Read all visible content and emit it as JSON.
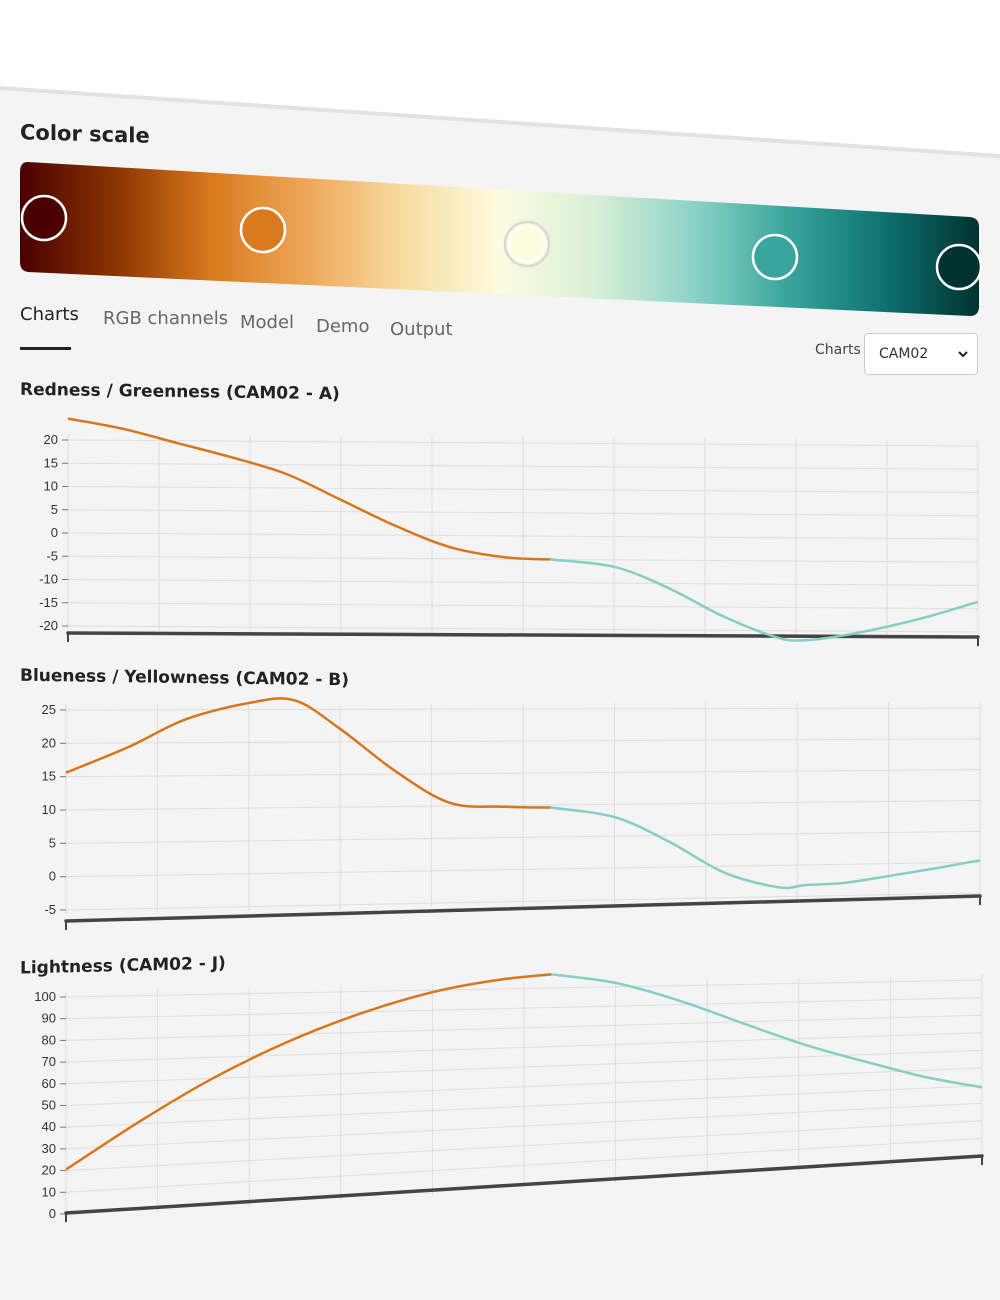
{
  "color_scale": {
    "title": "Color scale",
    "stops": [
      "#4a0000",
      "#d97a1e",
      "#fdfbe0",
      "#3aa59c",
      "#003230"
    ],
    "gradient": [
      "#4a0000",
      "#8b3500",
      "#d97a1e",
      "#eea75a",
      "#f7dca0",
      "#fdfbe0",
      "#d8efd6",
      "#8ed3c7",
      "#3aa59c",
      "#0e7372",
      "#003230"
    ]
  },
  "tabs": [
    {
      "label": "Charts",
      "active": true
    },
    {
      "label": "RGB channels",
      "active": false
    },
    {
      "label": "Model",
      "active": false
    },
    {
      "label": "Demo",
      "active": false
    },
    {
      "label": "Output",
      "active": false
    }
  ],
  "chart_select": {
    "label": "Charts",
    "value": "CAM02"
  },
  "colors": {
    "first_half": "#d8761e",
    "second_half": "#88cdc3",
    "axis": "#444444",
    "grid": "#dddddd"
  },
  "chart_data": [
    {
      "type": "line",
      "title": "Redness / Greenness (CAM02 - A)",
      "xlabel": "",
      "ylabel": "",
      "ylim": [
        -20,
        20
      ],
      "yticks": [
        20,
        15,
        10,
        5,
        0,
        -5,
        -10,
        -15,
        -20
      ],
      "grid": true,
      "series": [
        {
          "x": [
            0,
            0.06,
            0.12,
            0.18,
            0.24,
            0.3,
            0.36,
            0.42,
            0.48,
            0.53
          ],
          "values": [
            24.6,
            22.5,
            19.5,
            16.5,
            13,
            7.5,
            2,
            -2.5,
            -4.6,
            -5
          ]
        },
        {
          "x": [
            0.53,
            0.6,
            0.66,
            0.72,
            0.78,
            0.81,
            0.85,
            0.9,
            0.95,
            1
          ],
          "values": [
            -5,
            -6.5,
            -11,
            -17,
            -21.5,
            -22,
            -21,
            -19,
            -16.5,
            -13.5
          ]
        }
      ]
    },
    {
      "type": "line",
      "title": "Blueness / Yellowness (CAM02 - B)",
      "xlabel": "",
      "ylabel": "",
      "ylim": [
        -5,
        25
      ],
      "yticks": [
        25,
        20,
        15,
        10,
        5,
        0,
        -5
      ],
      "grid": true,
      "series": [
        {
          "x": [
            0,
            0.07,
            0.13,
            0.2,
            0.25,
            0.3,
            0.36,
            0.42,
            0.48,
            0.53
          ],
          "values": [
            15.6,
            19.5,
            23.5,
            26,
            26.4,
            22,
            15.5,
            10.5,
            9.8,
            9.6
          ]
        },
        {
          "x": [
            0.53,
            0.6,
            0.66,
            0.72,
            0.78,
            0.81,
            0.85,
            0.9,
            0.95,
            1
          ],
          "values": [
            9.6,
            8,
            4,
            -1,
            -3.5,
            -3.2,
            -3,
            -2,
            -0.9,
            0.3
          ]
        }
      ]
    },
    {
      "type": "line",
      "title": "Lightness (CAM02 - J)",
      "xlabel": "",
      "ylabel": "",
      "ylim": [
        0,
        100
      ],
      "yticks": [
        100,
        90,
        80,
        70,
        60,
        50,
        40,
        30,
        20,
        10,
        0
      ],
      "grid": true,
      "series": [
        {
          "x": [
            0,
            0.08,
            0.16,
            0.24,
            0.32,
            0.4,
            0.47,
            0.53
          ],
          "values": [
            20.5,
            41,
            60,
            76,
            89,
            99,
            104.5,
            107
          ]
        },
        {
          "x": [
            0.53,
            0.6,
            0.67,
            0.74,
            0.81,
            0.88,
            0.94,
            1
          ],
          "values": [
            107,
            102,
            92,
            79,
            66,
            55,
            46,
            39
          ]
        }
      ]
    }
  ]
}
